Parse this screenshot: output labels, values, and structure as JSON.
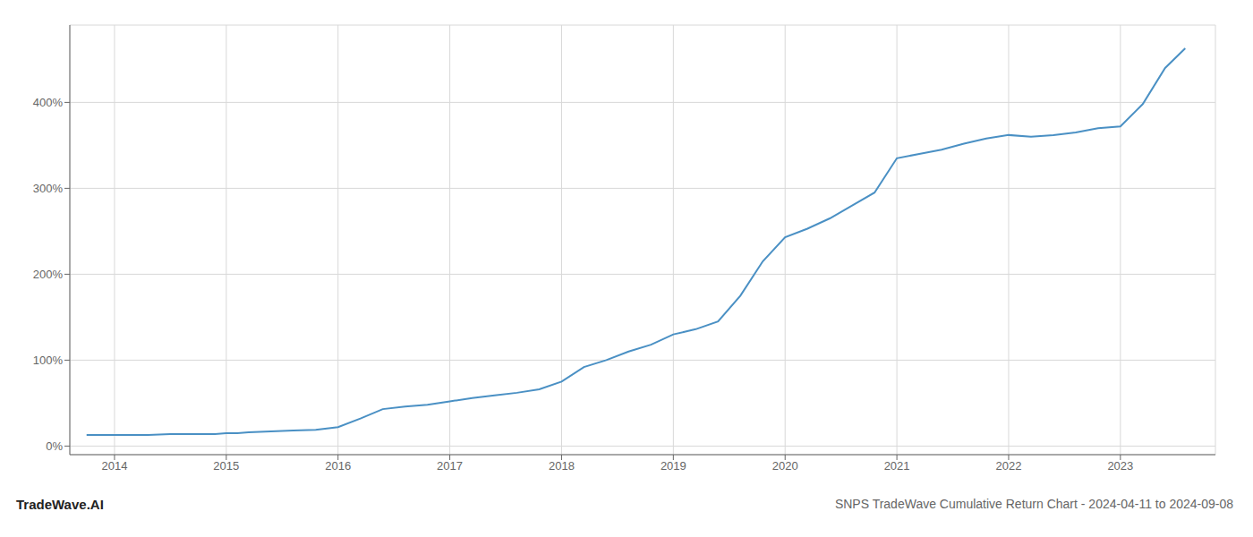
{
  "chart_data": {
    "type": "line",
    "title": "SNPS TradeWave Cumulative Return Chart - 2024-04-11 to 2024-09-08",
    "annotations": [
      "TradeWave.AI"
    ],
    "color": "#4a90c4",
    "grid": true,
    "x": [
      2013.75,
      2014.0,
      2014.15,
      2014.3,
      2014.5,
      2014.7,
      2014.9,
      2015.0,
      2015.1,
      2015.2,
      2015.4,
      2015.6,
      2015.8,
      2016.0,
      2016.2,
      2016.4,
      2016.6,
      2016.8,
      2017.0,
      2017.2,
      2017.4,
      2017.6,
      2017.8,
      2018.0,
      2018.2,
      2018.4,
      2018.6,
      2018.8,
      2019.0,
      2019.1,
      2019.2,
      2019.4,
      2019.6,
      2019.8,
      2020.0,
      2020.2,
      2020.4,
      2020.6,
      2020.8,
      2021.0,
      2021.2,
      2021.4,
      2021.6,
      2021.8,
      2022.0,
      2022.2,
      2022.4,
      2022.6,
      2022.8,
      2023.0,
      2023.2,
      2023.4,
      2023.58
    ],
    "values": [
      13,
      13,
      13,
      13,
      14,
      14,
      14,
      15,
      15,
      16,
      17,
      18,
      19,
      22,
      32,
      43,
      46,
      48,
      52,
      56,
      59,
      62,
      66,
      75,
      92,
      100,
      110,
      118,
      130,
      133,
      136,
      145,
      175,
      215,
      243,
      253,
      265,
      280,
      295,
      335,
      340,
      345,
      352,
      358,
      362,
      360,
      362,
      365,
      370,
      372,
      398,
      440,
      463
    ],
    "xlim": [
      2013.6,
      2023.85
    ],
    "xticks": [
      2014,
      2015,
      2016,
      2017,
      2018,
      2019,
      2020,
      2021,
      2022,
      2023
    ],
    "ylim": [
      -10,
      490
    ],
    "yticks": [
      {
        "value": 0,
        "label": "0%"
      },
      {
        "value": 100,
        "label": "100%"
      },
      {
        "value": 200,
        "label": "200%"
      },
      {
        "value": 300,
        "label": "300%"
      },
      {
        "value": 400,
        "label": "400%"
      }
    ]
  }
}
